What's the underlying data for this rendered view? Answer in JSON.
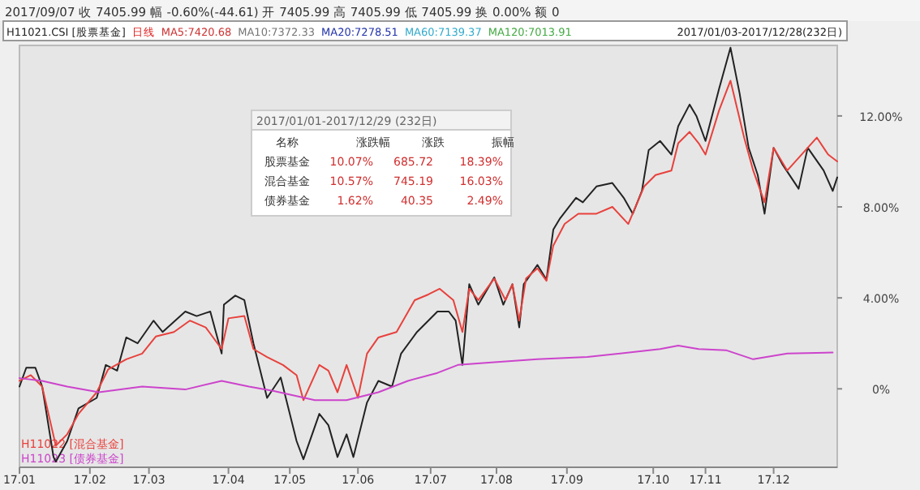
{
  "chart_data": [
    {
      "type": "line",
      "annotations": [
        "2017/09/07  收 7405.99  幅 -0.60%(-44.61)  开 7405.99  高 7405.99  低 7405.99  换 0.00%  额 0",
        "日线",
        "MA5:7420.68",
        "MA10:7372.33",
        "MA20:7278.51",
        "MA60:7139.37",
        "MA120:7013.91",
        "2017/01/03-2017/12/28(232日)"
      ],
      "xlim": [
        "2017-01-03",
        "2017-12-29"
      ],
      "ylim": [
        -3.45,
        15.1
      ],
      "xticks": [
        {
          "value": "2017-01-03",
          "label": "17.01"
        },
        {
          "value": "2017-02-03",
          "label": "17.02"
        },
        {
          "value": "2017-03-01",
          "label": "17.03"
        },
        {
          "value": "2017-04-05",
          "label": "17.04"
        },
        {
          "value": "2017-05-02",
          "label": "17.05"
        },
        {
          "value": "2017-06-01",
          "label": "17.06"
        },
        {
          "value": "2017-07-03",
          "label": "17.07"
        },
        {
          "value": "2017-08-01",
          "label": "17.08"
        },
        {
          "value": "2017-09-01",
          "label": "17.09"
        },
        {
          "value": "2017-10-09",
          "label": "17.10"
        },
        {
          "value": "2017-11-01",
          "label": "17.11"
        },
        {
          "value": "2017-12-01",
          "label": "17.12"
        }
      ],
      "yticks": [
        {
          "value": 0,
          "label": "0%"
        },
        {
          "value": 4,
          "label": "4.00%"
        },
        {
          "value": 8,
          "label": "8.00%"
        },
        {
          "value": 12,
          "label": "12.00%"
        }
      ],
      "legend": "left",
      "series": [
        {
          "name": "H11021.CSI [股票基金]",
          "color": "#222222",
          "x": [
            "2017-01-03",
            "2017-01-06",
            "2017-01-10",
            "2017-01-13",
            "2017-01-18",
            "2017-01-19",
            "2017-01-24",
            "2017-01-29",
            "2017-02-06",
            "2017-02-10",
            "2017-02-15",
            "2017-02-19",
            "2017-02-24",
            "2017-03-03",
            "2017-03-07",
            "2017-03-17",
            "2017-03-22",
            "2017-03-28",
            "2017-04-02",
            "2017-04-03",
            "2017-04-08",
            "2017-04-12",
            "2017-04-16",
            "2017-04-22",
            "2017-04-28",
            "2017-05-05",
            "2017-05-08",
            "2017-05-15",
            "2017-05-19",
            "2017-05-23",
            "2017-05-27",
            "2017-05-30",
            "2017-06-05",
            "2017-06-10",
            "2017-06-16",
            "2017-06-20",
            "2017-06-27",
            "2017-07-02",
            "2017-07-06",
            "2017-07-11",
            "2017-07-14",
            "2017-07-17",
            "2017-07-20",
            "2017-07-24",
            "2017-07-31",
            "2017-08-04",
            "2017-08-08",
            "2017-08-11",
            "2017-08-13",
            "2017-08-19",
            "2017-08-23",
            "2017-08-26",
            "2017-08-29",
            "2017-09-05",
            "2017-09-08",
            "2017-09-14",
            "2017-09-21",
            "2017-09-26",
            "2017-09-30",
            "2017-10-04",
            "2017-10-07",
            "2017-10-12",
            "2017-10-17",
            "2017-10-20",
            "2017-10-25",
            "2017-10-28",
            "2017-11-01",
            "2017-11-07",
            "2017-11-12",
            "2017-11-16",
            "2017-11-20",
            "2017-11-24",
            "2017-11-27",
            "2017-12-01",
            "2017-12-05",
            "2017-12-12",
            "2017-12-16",
            "2017-12-23",
            "2017-12-27",
            "2017-12-29"
          ],
          "values": [
            0.1,
            0.93,
            0.93,
            0.1,
            -3.0,
            -3.2,
            -2.3,
            -0.86,
            -0.4,
            1.05,
            0.8,
            2.26,
            2.0,
            3.0,
            2.5,
            3.4,
            3.2,
            3.4,
            1.55,
            3.7,
            4.1,
            3.9,
            2.0,
            -0.4,
            0.5,
            -2.3,
            -3.1,
            -1.1,
            -1.6,
            -3.0,
            -2.0,
            -3.0,
            -0.6,
            0.35,
            0.1,
            1.55,
            2.5,
            3.0,
            3.4,
            3.4,
            3.0,
            1.05,
            4.6,
            3.7,
            4.9,
            3.7,
            4.6,
            2.7,
            4.6,
            5.45,
            4.8,
            7.0,
            7.5,
            8.4,
            8.2,
            8.9,
            9.05,
            8.4,
            7.7,
            8.7,
            10.5,
            10.9,
            10.3,
            11.55,
            12.5,
            12.0,
            10.9,
            13.2,
            15.0,
            13.0,
            10.6,
            9.4,
            7.7,
            10.6,
            9.85,
            8.8,
            10.6,
            9.6,
            8.7,
            9.3
          ]
        },
        {
          "name": "H11022 [混合基金]",
          "color": "#e8413c",
          "x": [
            "2017-01-03",
            "2017-01-08",
            "2017-01-13",
            "2017-01-19",
            "2017-01-24",
            "2017-01-29",
            "2017-02-06",
            "2017-02-11",
            "2017-02-19",
            "2017-02-26",
            "2017-03-04",
            "2017-03-12",
            "2017-03-19",
            "2017-03-26",
            "2017-04-02",
            "2017-04-05",
            "2017-04-12",
            "2017-04-16",
            "2017-04-22",
            "2017-04-29",
            "2017-05-05",
            "2017-05-08",
            "2017-05-15",
            "2017-05-19",
            "2017-05-23",
            "2017-05-27",
            "2017-06-01",
            "2017-06-05",
            "2017-06-10",
            "2017-06-18",
            "2017-06-26",
            "2017-07-02",
            "2017-07-07",
            "2017-07-13",
            "2017-07-17",
            "2017-07-20",
            "2017-07-24",
            "2017-07-31",
            "2017-08-05",
            "2017-08-08",
            "2017-08-11",
            "2017-08-14",
            "2017-08-19",
            "2017-08-23",
            "2017-08-26",
            "2017-08-31",
            "2017-09-06",
            "2017-09-14",
            "2017-09-21",
            "2017-09-28",
            "2017-10-05",
            "2017-10-10",
            "2017-10-17",
            "2017-10-20",
            "2017-10-25",
            "2017-10-29",
            "2017-11-01",
            "2017-11-07",
            "2017-11-12",
            "2017-11-18",
            "2017-11-22",
            "2017-11-27",
            "2017-12-01",
            "2017-12-07",
            "2017-12-16",
            "2017-12-20",
            "2017-12-25",
            "2017-12-29"
          ],
          "values": [
            0.35,
            0.6,
            0.1,
            -2.5,
            -2.0,
            -1.1,
            -0.15,
            0.85,
            1.3,
            1.55,
            2.3,
            2.5,
            3.0,
            2.7,
            1.75,
            3.1,
            3.2,
            1.75,
            1.4,
            1.05,
            0.6,
            -0.5,
            1.05,
            0.8,
            -0.15,
            1.05,
            -0.4,
            1.55,
            2.26,
            2.5,
            3.9,
            4.15,
            4.4,
            3.9,
            2.5,
            4.4,
            3.9,
            4.85,
            3.9,
            4.6,
            3.0,
            4.85,
            5.3,
            4.75,
            6.3,
            7.25,
            7.7,
            7.7,
            8.0,
            7.25,
            8.9,
            9.4,
            9.6,
            10.8,
            11.3,
            10.8,
            10.3,
            12.25,
            13.55,
            11.05,
            9.6,
            8.2,
            10.6,
            9.6,
            10.6,
            11.05,
            10.3,
            10.0
          ]
        },
        {
          "name": "H11023 [债券基金]",
          "color": "#cc44cc",
          "x": [
            "2017-01-03",
            "2017-01-13",
            "2017-01-24",
            "2017-02-07",
            "2017-02-26",
            "2017-03-17",
            "2017-04-02",
            "2017-04-14",
            "2017-04-25",
            "2017-05-13",
            "2017-05-27",
            "2017-06-10",
            "2017-06-23",
            "2017-07-06",
            "2017-07-15",
            "2017-07-31",
            "2017-08-19",
            "2017-09-10",
            "2017-10-12",
            "2017-10-20",
            "2017-10-29",
            "2017-11-10",
            "2017-11-22",
            "2017-12-07",
            "2017-12-27"
          ],
          "values": [
            0.47,
            0.35,
            0.1,
            -0.15,
            0.1,
            -0.03,
            0.35,
            0.1,
            -0.1,
            -0.5,
            -0.5,
            -0.15,
            0.35,
            0.7,
            1.05,
            1.17,
            1.3,
            1.4,
            1.75,
            1.9,
            1.75,
            1.7,
            1.3,
            1.55,
            1.6
          ]
        }
      ]
    },
    {
      "type": "other",
      "title": "2017/01/01-2017/12/29 (232日)",
      "annotations": [
        "名称",
        "涨跌幅",
        "涨跌",
        "振幅",
        "股票基金",
        "10.07%",
        "685.72",
        "18.39%",
        "混合基金",
        "10.57%",
        "745.19",
        "16.03%",
        "债券基金",
        "1.62%",
        "40.35",
        "2.49%"
      ]
    }
  ]
}
